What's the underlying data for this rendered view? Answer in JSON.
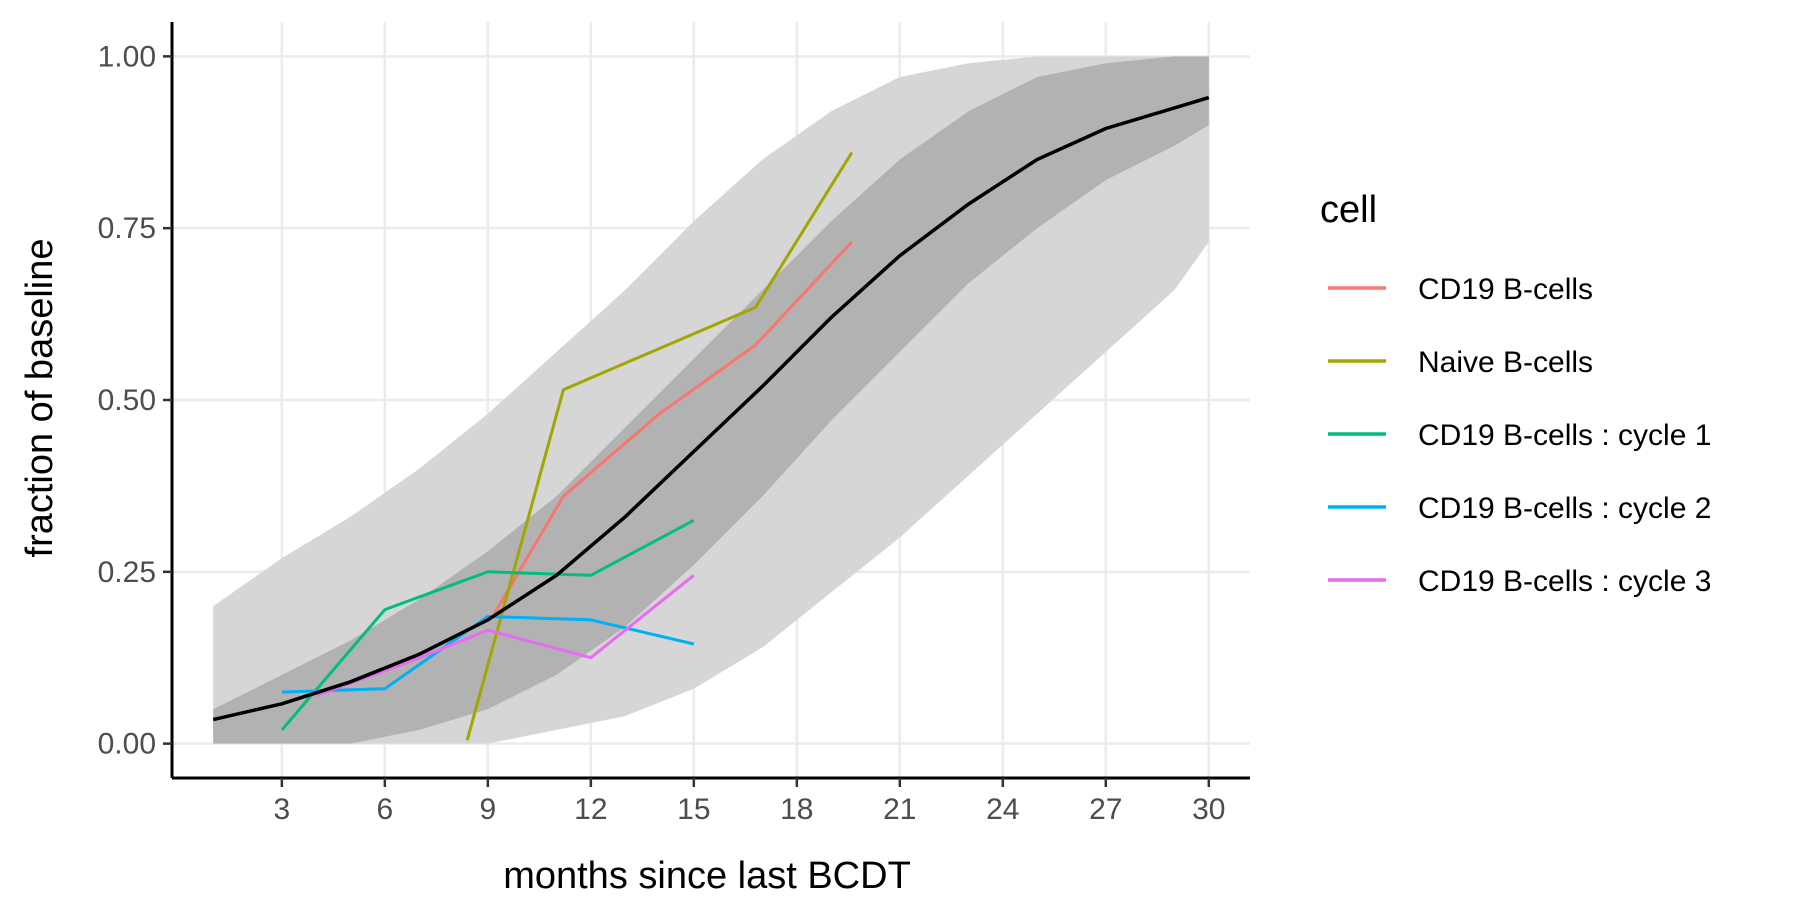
{
  "chart_data": {
    "type": "line",
    "title": "",
    "xlabel": "months since last BCDT",
    "ylabel": "fraction of baseline",
    "xlim": [
      -0.2,
      31.2
    ],
    "ylim": [
      -0.05,
      1.05
    ],
    "x_ticks": [
      3,
      6,
      9,
      12,
      15,
      18,
      21,
      24,
      27,
      30
    ],
    "x_tick_labels": [
      "3",
      "6",
      "9",
      "12",
      "15",
      "18",
      "21",
      "24",
      "27",
      "30"
    ],
    "y_ticks": [
      0,
      0.25,
      0.5,
      0.75,
      1.0
    ],
    "y_tick_labels": [
      "0.00",
      "0.25",
      "0.50",
      "0.75",
      "1.00"
    ],
    "grid": true,
    "legend": {
      "title": "cell",
      "position": "right"
    },
    "series": [
      {
        "name": "CD19 B-cells",
        "color": "#F8766D",
        "x": [
          9.2,
          11.2,
          14.0,
          16.8,
          19.6
        ],
        "y": [
          0.19,
          0.36,
          0.48,
          0.58,
          0.73
        ]
      },
      {
        "name": "Naive B-cells",
        "color": "#A3A500",
        "x": [
          8.4,
          11.2,
          16.8,
          19.6
        ],
        "y": [
          0.005,
          0.515,
          0.635,
          0.86
        ]
      },
      {
        "name": "CD19 B-cells : cycle 1",
        "color": "#00BF7D",
        "x": [
          3.0,
          6.0,
          9.0,
          12.0,
          15.0
        ],
        "y": [
          0.02,
          0.195,
          0.25,
          0.245,
          0.325
        ]
      },
      {
        "name": "CD19 B-cells : cycle 2",
        "color": "#00B0F6",
        "x": [
          3.0,
          6.0,
          9.0,
          12.0,
          15.0
        ],
        "y": [
          0.075,
          0.08,
          0.185,
          0.18,
          0.145
        ]
      },
      {
        "name": "CD19 B-cells : cycle 3",
        "color": "#E76BF3",
        "x": [
          4.0,
          6.5,
          9.0,
          12.0,
          15.0
        ],
        "y": [
          0.07,
          0.115,
          0.165,
          0.125,
          0.245
        ]
      }
    ],
    "fit_curve": {
      "color": "#000000",
      "x": [
        1,
        3,
        5,
        7,
        9,
        11,
        13,
        15,
        17,
        19,
        21,
        23,
        25,
        27,
        29,
        30
      ],
      "y": [
        0.035,
        0.058,
        0.09,
        0.13,
        0.18,
        0.245,
        0.33,
        0.425,
        0.52,
        0.62,
        0.71,
        0.785,
        0.85,
        0.895,
        0.925,
        0.94
      ]
    },
    "inner_band": {
      "color": "#b2b2b2",
      "x": [
        1,
        3,
        5,
        7,
        9,
        11,
        13,
        15,
        17,
        19,
        21,
        23,
        25,
        27,
        29,
        30
      ],
      "lower": [
        0.0,
        0.0,
        0.0,
        0.02,
        0.05,
        0.1,
        0.17,
        0.26,
        0.36,
        0.47,
        0.57,
        0.67,
        0.75,
        0.82,
        0.87,
        0.9
      ],
      "upper": [
        0.05,
        0.1,
        0.15,
        0.21,
        0.28,
        0.36,
        0.46,
        0.56,
        0.66,
        0.76,
        0.85,
        0.92,
        0.97,
        0.99,
        1.0,
        1.0
      ]
    },
    "outer_band": {
      "color": "#d6d6d6",
      "x": [
        1,
        3,
        5,
        7,
        9,
        11,
        13,
        15,
        17,
        19,
        21,
        23,
        25,
        27,
        29,
        30
      ],
      "lower": [
        0.0,
        0.0,
        0.0,
        0.0,
        0.0,
        0.02,
        0.04,
        0.08,
        0.14,
        0.22,
        0.3,
        0.39,
        0.48,
        0.57,
        0.66,
        0.73
      ],
      "upper": [
        0.2,
        0.27,
        0.33,
        0.4,
        0.48,
        0.57,
        0.66,
        0.76,
        0.85,
        0.92,
        0.97,
        0.99,
        1.0,
        1.0,
        1.0,
        1.0
      ]
    }
  }
}
